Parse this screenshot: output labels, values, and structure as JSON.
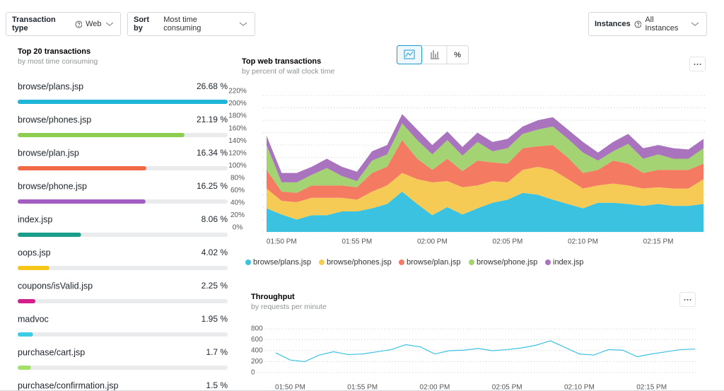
{
  "filters": [
    {
      "label": "Transaction type",
      "value": "Web"
    },
    {
      "label": "Sort by",
      "value": "Most time consuming"
    },
    {
      "label": "Instances",
      "value": "All Instances"
    }
  ],
  "list": {
    "title": "Top 20 transactions",
    "subtitle": "by most time consuming",
    "items": [
      {
        "name": "browse/plans.jsp",
        "value": 26.68,
        "value_label": "26.68 %",
        "color": "#1fb5d8"
      },
      {
        "name": "browse/phones.jsp",
        "value": 21.19,
        "value_label": "21.19 %",
        "color": "#8dcd4f"
      },
      {
        "name": "browse/plan.jsp",
        "value": 16.34,
        "value_label": "16.34 %",
        "color": "#f26a45"
      },
      {
        "name": "browse/phone.jsp",
        "value": 16.25,
        "value_label": "16.25 %",
        "color": "#a35dc2"
      },
      {
        "name": "index.jsp",
        "value": 8.06,
        "value_label": "8.06 %",
        "color": "#1a9e8c"
      },
      {
        "name": "oops.jsp",
        "value": 4.02,
        "value_label": "4.02 %",
        "color": "#f5c518"
      },
      {
        "name": "coupons/isValid.jsp",
        "value": 2.25,
        "value_label": "2.25 %",
        "color": "#d21f8b"
      },
      {
        "name": "madvoc",
        "value": 1.95,
        "value_label": "1.95 %",
        "color": "#3ccde6"
      },
      {
        "name": "purchase/cart.jsp",
        "value": 1.7,
        "value_label": "1.7 %",
        "color": "#a3e06b"
      },
      {
        "name": "purchase/confirmation.jsp",
        "value": 1.5,
        "value_label": "1.5 %",
        "color": "#f26a45"
      }
    ]
  },
  "view_toggle": {
    "percent": "%"
  },
  "chart_data": [
    {
      "type": "area",
      "stacked": true,
      "title": "Top web transactions",
      "subtitle": "by percent of wall clock time",
      "x": [
        null,
        "01:50 PM",
        null,
        null,
        null,
        null,
        "01:55 PM",
        null,
        null,
        null,
        null,
        "02:00 PM",
        null,
        null,
        null,
        null,
        "02:05 PM",
        null,
        null,
        null,
        null,
        "02:10 PM",
        null,
        null,
        null,
        null,
        "02:15 PM",
        null,
        null,
        null
      ],
      "ylim": [
        0,
        220
      ],
      "yticks": [
        {
          "value": 0,
          "label": "0%"
        },
        {
          "value": 20,
          "label": "20%"
        },
        {
          "value": 40,
          "label": "40%"
        },
        {
          "value": 60,
          "label": "60%"
        },
        {
          "value": 80,
          "label": "80%"
        },
        {
          "value": 100,
          "label": "100%"
        },
        {
          "value": 120,
          "label": "120%"
        },
        {
          "value": 140,
          "label": "140%"
        },
        {
          "value": 160,
          "label": "160%"
        },
        {
          "value": 180,
          "label": "180%"
        },
        {
          "value": 200,
          "label": "200%"
        },
        {
          "value": 220,
          "label": "220%"
        }
      ],
      "grid": true,
      "legend": "bottom",
      "series": [
        {
          "name": "browse/plans.jsp",
          "color": "#3bc2e0",
          "values": [
            38,
            28,
            20,
            27,
            27,
            33,
            33,
            38,
            45,
            65,
            45,
            27,
            40,
            28,
            38,
            47,
            52,
            63,
            60,
            52,
            45,
            38,
            47,
            47,
            45,
            42,
            45,
            42,
            42,
            45
          ]
        },
        {
          "name": "browse/phones.jsp",
          "color": "#f5cb55",
          "values": [
            32,
            22,
            28,
            28,
            28,
            22,
            19,
            27,
            30,
            30,
            40,
            53,
            42,
            44,
            37,
            35,
            28,
            37,
            45,
            48,
            40,
            32,
            28,
            31,
            30,
            28,
            27,
            28,
            28,
            40
          ]
        },
        {
          "name": "browse/plan.jsp",
          "color": "#f47a62",
          "values": [
            30,
            15,
            15,
            20,
            20,
            20,
            20,
            30,
            30,
            53,
            33,
            20,
            36,
            26,
            40,
            30,
            30,
            35,
            33,
            40,
            35,
            25,
            25,
            37,
            35,
            25,
            28,
            30,
            30,
            25
          ]
        },
        {
          "name": "browse/phone.jsp",
          "color": "#a3d372",
          "values": [
            40,
            15,
            17,
            17,
            28,
            15,
            10,
            20,
            20,
            27,
            30,
            25,
            30,
            25,
            30,
            18,
            25,
            23,
            27,
            30,
            30,
            33,
            15,
            15,
            32,
            23,
            25,
            18,
            18,
            25
          ]
        },
        {
          "name": "index.jsp",
          "color": "#a973bd",
          "values": [
            15,
            15,
            15,
            13,
            15,
            15,
            15,
            15,
            15,
            15,
            17,
            15,
            14,
            14,
            15,
            15,
            15,
            12,
            15,
            15,
            15,
            17,
            13,
            15,
            16,
            17,
            15,
            17,
            15,
            15
          ]
        }
      ]
    },
    {
      "type": "line",
      "title": "Throughput",
      "subtitle": "by requests per minute",
      "x": [
        null,
        "01:50 PM",
        null,
        null,
        null,
        null,
        "01:55 PM",
        null,
        null,
        null,
        null,
        "02:00 PM",
        null,
        null,
        null,
        null,
        "02:05 PM",
        null,
        null,
        null,
        null,
        "02:10 PM",
        null,
        null,
        null,
        null,
        "02:15 PM",
        null,
        null,
        null
      ],
      "ylim": [
        0,
        800
      ],
      "yticks": [
        0,
        200,
        400,
        600,
        800
      ],
      "grid": true,
      "color": "#3bc2e0",
      "values": [
        360,
        230,
        200,
        320,
        380,
        330,
        340,
        380,
        420,
        510,
        470,
        340,
        400,
        410,
        440,
        400,
        420,
        450,
        500,
        580,
        460,
        340,
        320,
        420,
        410,
        290,
        340,
        380,
        420,
        430
      ]
    }
  ]
}
